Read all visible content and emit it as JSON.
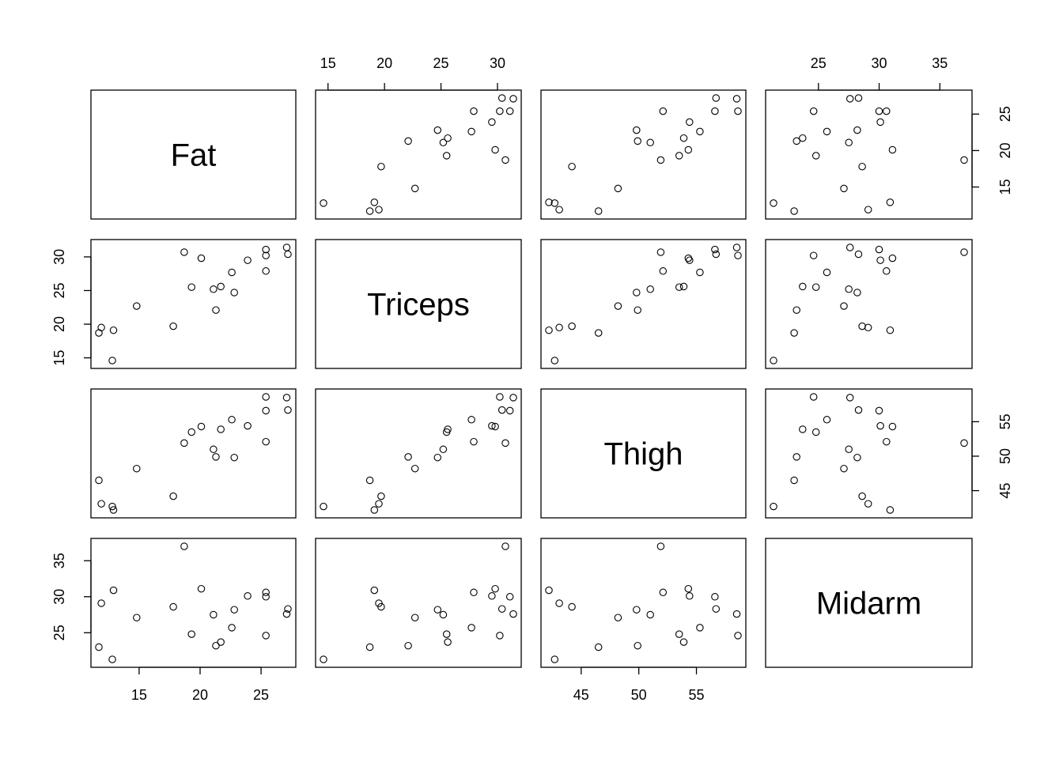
{
  "chart_data": {
    "type": "scatter",
    "subtype": "pairs-matrix",
    "variables": [
      "Fat",
      "Triceps",
      "Thigh",
      "Midarm"
    ],
    "ranges": {
      "Fat": [
        11.7,
        27.2
      ],
      "Triceps": [
        14.6,
        31.4
      ],
      "Thigh": [
        42.2,
        58.6
      ],
      "Midarm": [
        21.3,
        37.0
      ]
    },
    "ticks": {
      "Fat": [
        15,
        20,
        25
      ],
      "Triceps": [
        15,
        20,
        25,
        30
      ],
      "Thigh": [
        45,
        50,
        55
      ],
      "Midarm": [
        25,
        30,
        35
      ]
    },
    "axis_sides": {
      "top": [
        "",
        "Triceps",
        "",
        "Midarm"
      ],
      "bottom": [
        "Fat",
        "",
        "Thigh",
        ""
      ],
      "left": [
        "",
        "Triceps",
        "",
        "Midarm"
      ],
      "right": [
        "Fat",
        "",
        "Thigh",
        ""
      ]
    },
    "observations": {
      "Fat": [
        11.9,
        22.8,
        18.7,
        20.1,
        12.9,
        21.7,
        27.1,
        25.4,
        21.3,
        19.3,
        25.4,
        27.2,
        11.7,
        17.8,
        12.8,
        23.9,
        22.6,
        25.4,
        14.8,
        21.1
      ],
      "Triceps": [
        19.5,
        24.7,
        30.7,
        29.8,
        19.1,
        25.6,
        31.4,
        27.9,
        22.1,
        25.5,
        31.1,
        30.4,
        18.7,
        19.7,
        14.6,
        29.5,
        27.7,
        30.2,
        22.7,
        25.2
      ],
      "Thigh": [
        43.1,
        49.8,
        51.9,
        54.3,
        42.2,
        53.9,
        58.5,
        52.1,
        49.9,
        53.5,
        56.6,
        56.7,
        46.5,
        44.2,
        42.7,
        54.4,
        55.3,
        58.6,
        48.2,
        51.0
      ],
      "Midarm": [
        29.1,
        28.2,
        37.0,
        31.1,
        30.9,
        23.7,
        27.6,
        30.6,
        23.2,
        24.8,
        30.0,
        28.3,
        23.0,
        28.6,
        21.3,
        30.1,
        25.7,
        24.6,
        27.1,
        27.5
      ]
    }
  }
}
